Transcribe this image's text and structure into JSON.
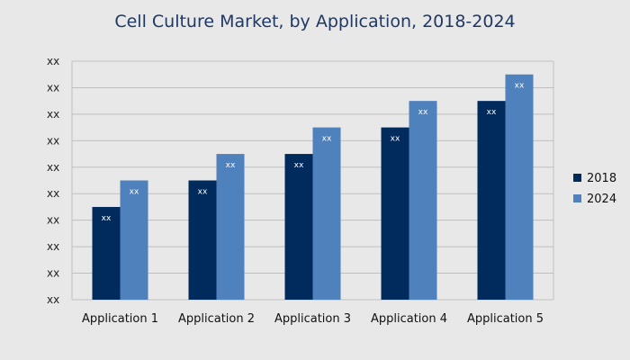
{
  "chart_data": {
    "type": "bar",
    "title": "Cell Culture Market, by Application, 2018-2024",
    "xlabel": "",
    "ylabel": "",
    "categories": [
      "Application 1",
      "Application 2",
      "Application 3",
      "Application 4",
      "Application 5"
    ],
    "series": [
      {
        "name": "2018",
        "color": "#002b5c",
        "values": [
          3.5,
          4.5,
          5.5,
          6.5,
          7.5
        ],
        "data_labels": [
          "xx",
          "xx",
          "xx",
          "xx",
          "xx"
        ]
      },
      {
        "name": "2024",
        "color": "#4f81bd",
        "values": [
          4.5,
          5.5,
          6.5,
          7.5,
          8.5
        ],
        "data_labels": [
          "xx",
          "xx",
          "xx",
          "xx",
          "xx"
        ]
      }
    ],
    "ylim": [
      0,
      9
    ],
    "y_tick_labels": [
      "xx",
      "xx",
      "xx",
      "xx",
      "xx",
      "xx",
      "xx",
      "xx",
      "xx",
      "xx"
    ],
    "grid": true,
    "legend_position": "right",
    "colors": {
      "background": "#e8e8e8",
      "gridline": "#bfbfbf",
      "title": "#1f3864"
    }
  }
}
